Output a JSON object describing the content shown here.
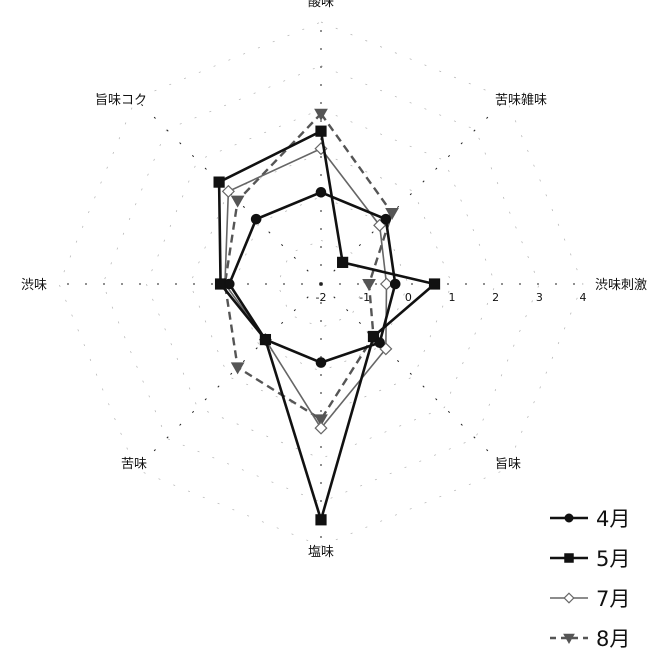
{
  "chart_data": {
    "type": "radar",
    "axes": [
      "酸味",
      "苦味雑味",
      "渋味刺激",
      "旨味",
      "塩味",
      "苦味",
      "渋味",
      "旨味コク"
    ],
    "rlim": [
      -2,
      4
    ],
    "ticks": [
      "-2",
      "-1",
      "0",
      "1",
      "2",
      "3",
      "4"
    ],
    "tick_axis": "渋味刺激",
    "grid": true,
    "legend_position": "bottom-right",
    "series": [
      {
        "name": "4月",
        "marker": "circle",
        "values": [
          0.1,
          0.1,
          -0.3,
          -0.1,
          -0.2,
          -0.2,
          0.1,
          0.1
        ]
      },
      {
        "name": "5月",
        "marker": "square",
        "values": [
          1.5,
          -1.3,
          0.6,
          -0.3,
          3.4,
          -0.2,
          0.3,
          1.3
        ]
      },
      {
        "name": "7月",
        "marker": "diamond",
        "values": [
          1.1,
          -0.1,
          -0.5,
          0.1,
          1.3,
          -0.2,
          0.2,
          1.0
        ]
      },
      {
        "name": "8月",
        "marker": "triangle",
        "values": [
          1.9,
          0.3,
          -0.9,
          -0.3,
          1.1,
          0.7,
          0.2,
          0.7
        ]
      }
    ]
  }
}
